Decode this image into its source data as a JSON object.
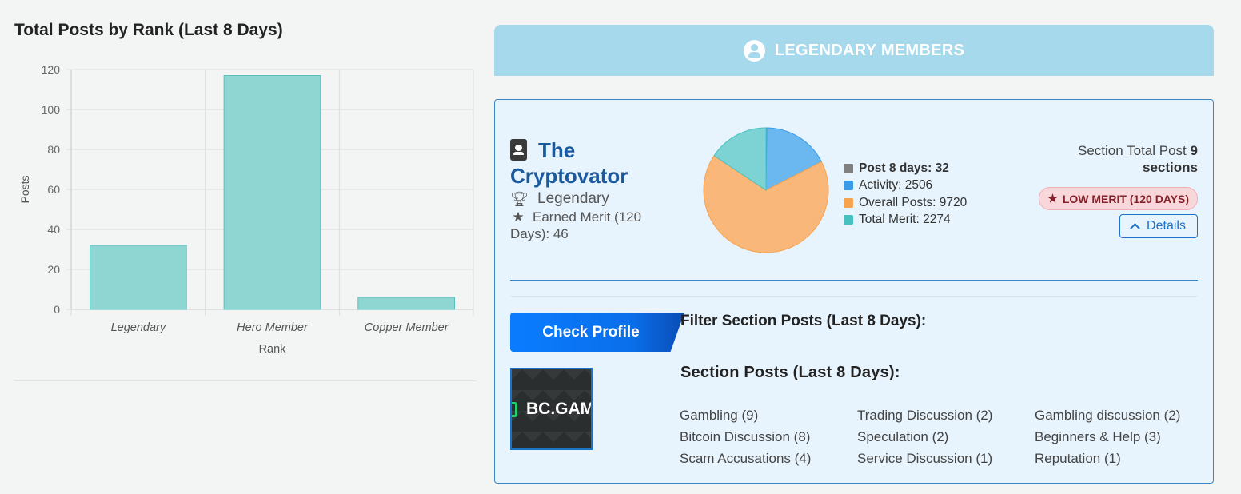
{
  "chart": {
    "title": "Total Posts by Rank (Last 8 Days)"
  },
  "chart_data": {
    "type": "bar",
    "title": "Total Posts by Rank (Last 8 Days)",
    "categories": [
      "Legendary",
      "Hero Member",
      "Copper Member"
    ],
    "values": [
      32,
      117,
      6
    ],
    "xlabel": "Rank",
    "ylabel": "Posts",
    "ylim": [
      0,
      120
    ],
    "yticks": [
      "0",
      "20",
      "40",
      "60",
      "80",
      "100",
      "120"
    ],
    "grid": true,
    "bar_color": "#8fd6d2",
    "bar_border": "#5bbfb9"
  },
  "header": {
    "title": "LEGENDARY MEMBERS",
    "icon": "user-circle-icon"
  },
  "member": {
    "name_first": "The",
    "name_second": "Cryptovator",
    "rank": "Legendary",
    "merit_text": "Earned Merit (120 Days): 46",
    "section_total_prefix": "Section Total Post",
    "section_total_count": "9",
    "section_total_suffix": "sections",
    "low_merit": "LOW MERIT (120 DAYS)",
    "details_label": "Details",
    "check_profile": "Check Profile",
    "logo_text": "BC.GAM"
  },
  "pie": {
    "legend": [
      {
        "label": "Post 8 days: 32",
        "color": "#808080",
        "bold": true
      },
      {
        "label": "Activity: 2506",
        "color": "#3b9be8",
        "bold": false
      },
      {
        "label": "Overall Posts: 9720",
        "color": "#f7a24e",
        "bold": false
      },
      {
        "label": "Total Merit: 2274",
        "color": "#47c1bf",
        "bold": false
      }
    ],
    "slices": [
      {
        "name": "Post 8 days",
        "value": 32,
        "color": "#b0b0b0"
      },
      {
        "name": "Activity",
        "value": 2506,
        "color": "#6bb8f0"
      },
      {
        "name": "Overall Posts",
        "value": 9720,
        "color": "#f9b87a"
      },
      {
        "name": "Total Merit",
        "value": 2274,
        "color": "#7dd3d4"
      }
    ]
  },
  "filters": {
    "filter_title": "Filter Section Posts (Last 8 Days):",
    "section_title": "Section Posts (Last 8 Days):",
    "items": [
      "Gambling (9)",
      "Trading Discussion (2)",
      "Gambling discussion (2)",
      "Bitcoin Discussion (8)",
      "Speculation (2)",
      "Beginners & Help (3)",
      "Scam Accusations (4)",
      "Service Discussion (1)",
      "Reputation (1)"
    ]
  }
}
